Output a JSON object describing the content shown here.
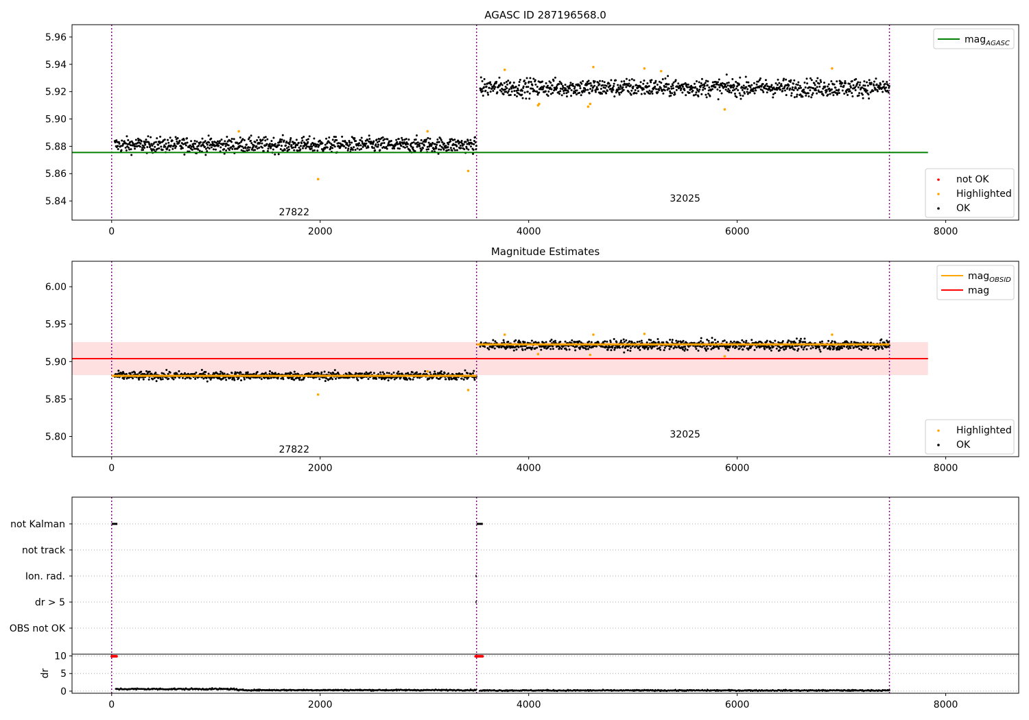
{
  "chart_data": [
    {
      "type": "scatter",
      "title": "AGASC ID 287196568.0",
      "xlabel": "",
      "ylabel": "",
      "xlim": [
        -380,
        8700
      ],
      "ylim": [
        5.826,
        5.969
      ],
      "xticks": [
        0,
        2000,
        4000,
        6000,
        8000
      ],
      "xtick_labels": [
        "0",
        "2000",
        "4000",
        "6000",
        "8000"
      ],
      "yticks": [
        5.84,
        5.86,
        5.88,
        5.9,
        5.92,
        5.94,
        5.96
      ],
      "ytick_labels": [
        "5.84",
        "5.86",
        "5.88",
        "5.90",
        "5.92",
        "5.94",
        "5.96"
      ],
      "obsid_boundaries": [
        0,
        3500,
        7460
      ],
      "obsid_labels": [
        {
          "text": "27822",
          "x": 1750,
          "y": 5.832
        },
        {
          "text": "32025",
          "x": 5500,
          "y": 5.842
        }
      ],
      "segments": [
        {
          "x_start": 30,
          "x_end": 3500,
          "y_center": 5.881,
          "spread": 0.006
        },
        {
          "x_start": 3535,
          "x_end": 7460,
          "y_center": 5.923,
          "spread": 0.007
        }
      ],
      "lines": [
        {
          "name": "mag_AGASC",
          "color": "#008000",
          "x": [
            -380,
            7830
          ],
          "y": [
            5.8755,
            5.8755
          ]
        }
      ],
      "highlighted_points": {
        "x": [
          1220,
          1980,
          3030,
          3420,
          3770,
          4090,
          4100,
          4570,
          4590,
          4620,
          5110,
          5270,
          5880,
          6910
        ],
        "y": [
          5.891,
          5.856,
          5.891,
          5.862,
          5.936,
          5.91,
          5.911,
          5.909,
          5.911,
          5.938,
          5.937,
          5.935,
          5.907,
          5.937
        ]
      },
      "legend_top": {
        "placement": "top-right",
        "entries": [
          {
            "label": "mag",
            "sub": "AGASC",
            "color": "#008000",
            "kind": "line"
          }
        ]
      },
      "legend_bottom": {
        "placement": "bottom-right",
        "entries": [
          {
            "label": "not OK",
            "color": "#ff0000",
            "kind": "dot"
          },
          {
            "label": "Highlighted",
            "color": "#ffa500",
            "kind": "dot"
          },
          {
            "label": "OK",
            "color": "#000000",
            "kind": "dot"
          }
        ]
      }
    },
    {
      "type": "scatter",
      "title": "Magnitude Estimates",
      "xlabel": "",
      "ylabel": "",
      "xlim": [
        -380,
        8700
      ],
      "ylim": [
        5.773,
        6.034
      ],
      "xticks": [
        0,
        2000,
        4000,
        6000,
        8000
      ],
      "xtick_labels": [
        "0",
        "2000",
        "4000",
        "6000",
        "8000"
      ],
      "yticks": [
        5.8,
        5.85,
        5.9,
        5.95,
        6.0
      ],
      "ytick_labels": [
        "5.80",
        "5.85",
        "5.90",
        "5.95",
        "6.00"
      ],
      "obsid_boundaries": [
        0,
        3500,
        7460
      ],
      "obsid_labels": [
        {
          "text": "27822",
          "x": 1750,
          "y": 5.783
        },
        {
          "text": "32025",
          "x": 5500,
          "y": 5.803
        }
      ],
      "segments": [
        {
          "x_start": 30,
          "x_end": 3500,
          "y_center": 5.881,
          "spread": 0.006
        },
        {
          "x_start": 3535,
          "x_end": 7460,
          "y_center": 5.922,
          "spread": 0.007
        }
      ],
      "band": {
        "color": "#ffcccc",
        "x": [
          -380,
          7830
        ],
        "y": [
          5.882,
          5.926
        ]
      },
      "lines": [
        {
          "name": "mag",
          "color": "#ff0000",
          "x": [
            -380,
            7830
          ],
          "y": [
            5.904,
            5.904
          ]
        },
        {
          "name": "mag_OBSID",
          "color": "#ffa500",
          "x": [
            0,
            3500
          ],
          "y": [
            5.881,
            5.881
          ]
        },
        {
          "name": "mag_OBSID",
          "color": "#ffa500",
          "x": [
            3500,
            7460
          ],
          "y": [
            5.923,
            5.923
          ]
        }
      ],
      "highlighted_points": {
        "x": [
          1980,
          3030,
          3420,
          3770,
          4090,
          4590,
          4620,
          5110,
          5880,
          6910
        ],
        "y": [
          5.856,
          5.887,
          5.862,
          5.936,
          5.91,
          5.909,
          5.936,
          5.937,
          5.907,
          5.936
        ]
      },
      "legend_top": {
        "placement": "top-right",
        "entries": [
          {
            "label": "mag",
            "sub": "OBSID",
            "color": "#ffa500",
            "kind": "line"
          },
          {
            "label": "mag",
            "sub": "",
            "color": "#ff0000",
            "kind": "line"
          }
        ]
      },
      "legend_bottom": {
        "placement": "bottom-right",
        "entries": [
          {
            "label": "Highlighted",
            "color": "#ffa500",
            "kind": "dot"
          },
          {
            "label": "OK",
            "color": "#000000",
            "kind": "dot"
          }
        ]
      }
    },
    {
      "type": "scatter",
      "title": "",
      "xlim": [
        -380,
        8700
      ],
      "categories": [
        "not Kalman",
        "not track",
        "Ion. rad.",
        "dr > 5",
        "OBS not OK"
      ],
      "obsid_boundaries": [
        0,
        3500,
        7460
      ],
      "flag_marks": [
        {
          "category": "not Kalman",
          "x_start": 0,
          "x_end": 55
        },
        {
          "category": "not Kalman",
          "x_start": 3500,
          "x_end": 3560
        },
        {
          "category": "Ion. rad.",
          "x_start": 3490,
          "x_end": 3495
        },
        {
          "category": "dr > 5",
          "x_start": 3490,
          "x_end": 3495
        }
      ]
    },
    {
      "type": "scatter",
      "title": "",
      "xlabel": "",
      "ylabel": "dr",
      "xlim": [
        -380,
        8700
      ],
      "ylim": [
        -0.6,
        10.5
      ],
      "xticks": [
        0,
        2000,
        4000,
        6000,
        8000
      ],
      "xtick_labels": [
        "0",
        "2000",
        "4000",
        "6000",
        "8000"
      ],
      "yticks": [
        0,
        5,
        10
      ],
      "ytick_labels": [
        "0",
        "5",
        "10"
      ],
      "obsid_boundaries": [
        0,
        3500,
        7460
      ],
      "dr_segments": [
        {
          "x_start": 40,
          "x_end": 1200,
          "y_center": 0.6,
          "spread": 0.25
        },
        {
          "x_start": 1200,
          "x_end": 3500,
          "y_center": 0.3,
          "spread": 0.2
        },
        {
          "x_start": 3530,
          "x_end": 7460,
          "y_center": 0.2,
          "spread": 0.2
        }
      ],
      "not_ok_points": {
        "x_ranges": [
          [
            0,
            50
          ],
          [
            3490,
            3560
          ]
        ],
        "y": 9.9
      }
    }
  ]
}
